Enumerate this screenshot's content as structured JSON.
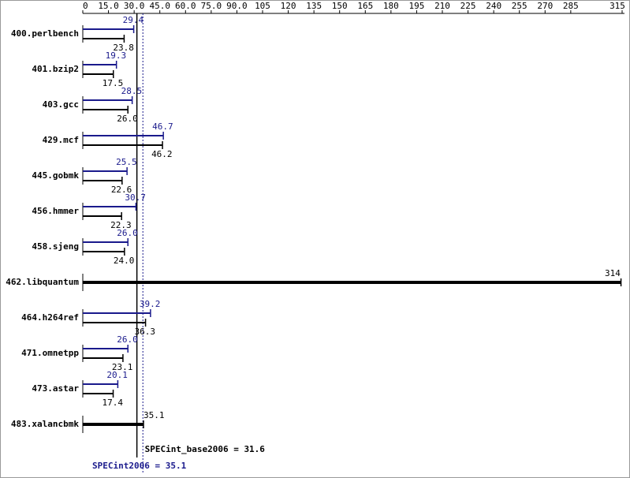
{
  "chart_data": {
    "type": "bar",
    "orientation": "horizontal",
    "categories": [
      "400.perlbench",
      "401.bzip2",
      "403.gcc",
      "429.mcf",
      "445.gobmk",
      "456.hmmer",
      "458.sjeng",
      "462.libquantum",
      "464.h264ref",
      "471.omnetpp",
      "473.astar",
      "483.xalancbmk"
    ],
    "series": [
      {
        "color": "#1a1a8c",
        "values": [
          29.4,
          19.3,
          28.5,
          46.7,
          25.5,
          30.7,
          26.0,
          null,
          39.2,
          26.0,
          20.1,
          null
        ],
        "value_labels": [
          "29.4",
          "19.3",
          "28.5",
          "46.7",
          "25.5",
          "30.7",
          "26.0",
          null,
          "39.2",
          "26.0",
          "20.1",
          null
        ]
      },
      {
        "color": "#000000",
        "values": [
          23.8,
          17.5,
          26.0,
          46.2,
          22.6,
          22.3,
          24.0,
          314,
          36.3,
          23.1,
          17.4,
          35.1
        ],
        "value_labels": [
          "23.8",
          "17.5",
          "26.0",
          "46.2",
          "22.6",
          "22.3",
          "24.0",
          "314",
          "36.3",
          "23.1",
          "17.4",
          "35.1"
        ]
      }
    ],
    "xlim": [
      0,
      315
    ],
    "xticks": [
      0,
      {
        "value": 15,
        "label": "15.0"
      },
      {
        "value": 30,
        "label": "30.0"
      },
      {
        "value": 45,
        "label": "45.0"
      },
      {
        "value": 60,
        "label": "60.0"
      },
      {
        "value": 75,
        "label": "75.0"
      },
      {
        "value": 90,
        "label": "90.0"
      },
      105,
      120,
      135,
      150,
      165,
      180,
      195,
      210,
      225,
      240,
      255,
      270,
      285,
      315
    ],
    "reference_lines": [
      {
        "label": "SPECint_base2006 = 31.6",
        "value": 31.6,
        "color": "#000000",
        "style": "solid"
      },
      {
        "label": "SPECint2006 = 35.1",
        "value": 35.1,
        "color": "#1a1a8c",
        "style": "dotted"
      }
    ]
  }
}
